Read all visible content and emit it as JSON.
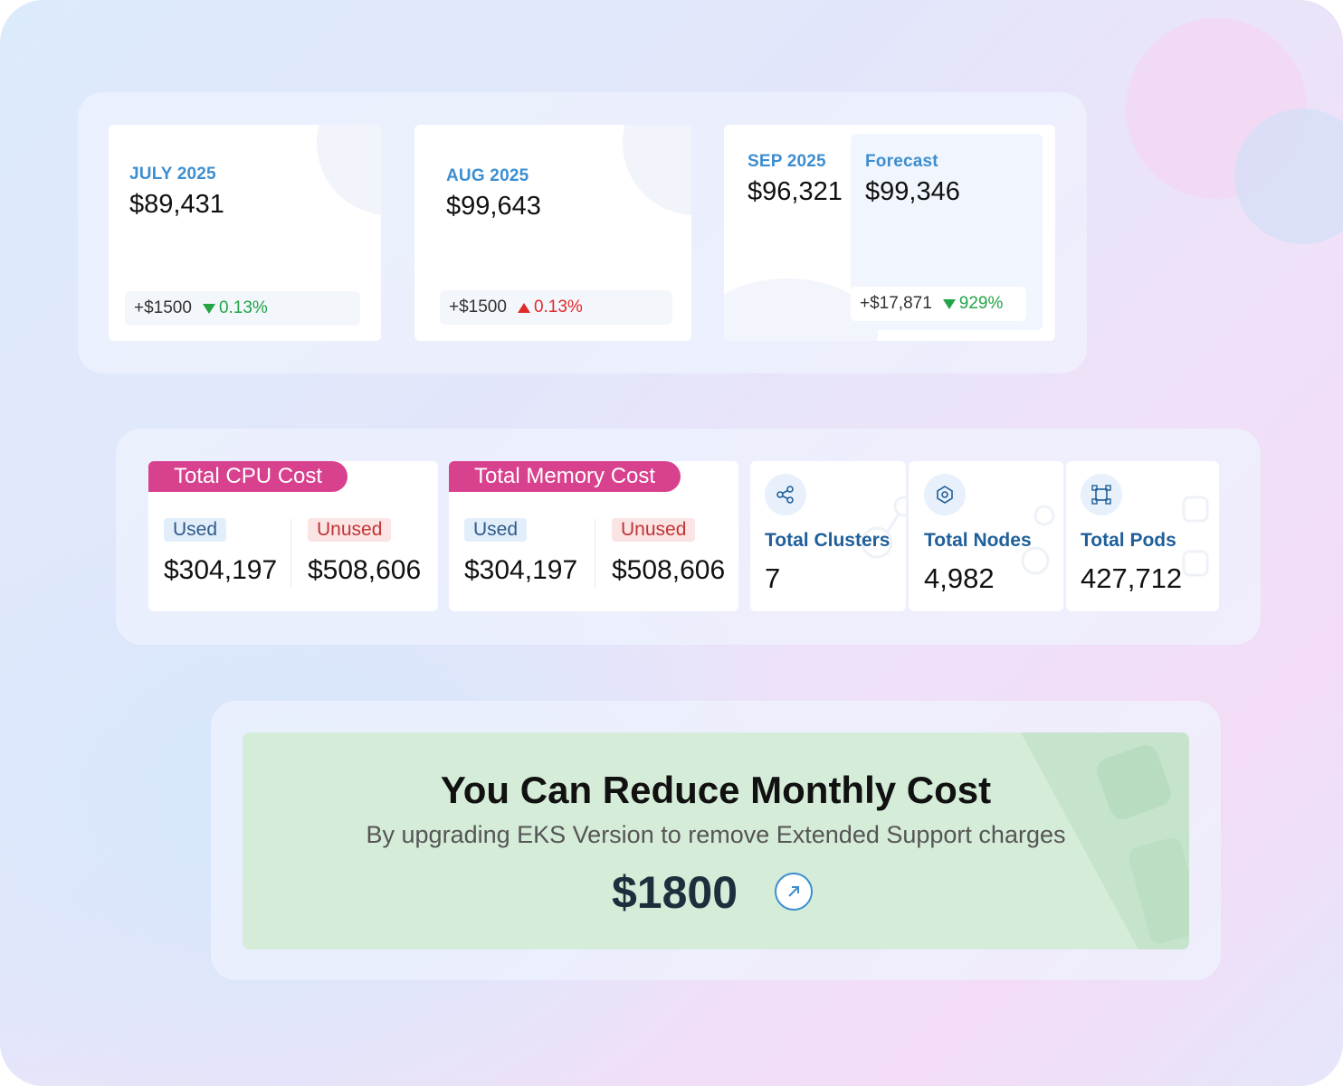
{
  "monthly": {
    "july": {
      "month": "JULY 2025",
      "amount": "$89,431",
      "delta": "+$1500",
      "change": "0.13%",
      "trend": "down",
      "trend_color": "#22a447"
    },
    "aug": {
      "month": "AUG 2025",
      "amount": "$99,643",
      "delta": "+$1500",
      "change": "0.13%",
      "trend": "up",
      "trend_color": "#e12a2a"
    },
    "sep": {
      "month": "SEP 2025",
      "amount": "$96,321"
    },
    "forecast": {
      "label": "Forecast",
      "amount": "$99,346",
      "delta": "+$17,871",
      "change": "929%",
      "trend": "down",
      "trend_color": "#22a447"
    }
  },
  "cpu": {
    "title": "Total CPU Cost",
    "used_label": "Used",
    "used_value": "$304,197",
    "unused_label": "Unused",
    "unused_value": "$508,606"
  },
  "memory": {
    "title": "Total Memory Cost",
    "used_label": "Used",
    "used_value": "$304,197",
    "unused_label": "Unused",
    "unused_value": "$508,606"
  },
  "stats": [
    {
      "label": "Total Clusters",
      "value": "7",
      "icon": "cluster-icon"
    },
    {
      "label": "Total Nodes",
      "value": "4,982",
      "icon": "nodes-icon"
    },
    {
      "label": "Total Pods",
      "value": "427,712",
      "icon": "pods-icon"
    }
  ],
  "banner": {
    "title": "You Can Reduce Monthly Cost",
    "subtitle": "By upgrading EKS Version to remove Extended Support charges",
    "amount": "$1800",
    "link_icon": "arrow-up-right-icon"
  },
  "colors": {
    "accent": "#3d8ed0",
    "tag": "#d7418e",
    "green": "#22a447",
    "red": "#e12a2a",
    "banner_bg": "#d5ecd8"
  }
}
